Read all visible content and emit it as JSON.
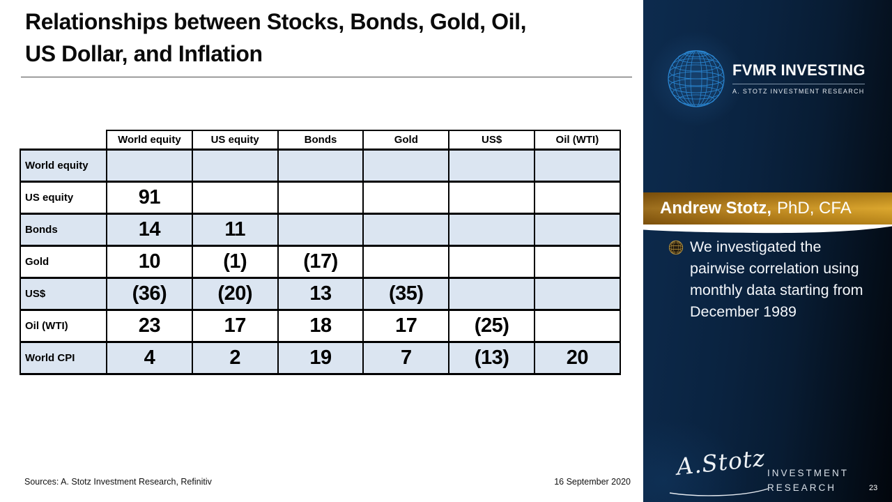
{
  "slide": {
    "title_lines": [
      "Relationships between Stocks, Bonds, Gold, Oil,",
      "US Dollar, and Inflation"
    ],
    "sources": "Sources: A. Stotz Investment Research, Refinitiv",
    "date": "16 September 2020",
    "page_number": "23"
  },
  "chart_data": {
    "type": "table",
    "columns": [
      "World equity",
      "US equity",
      "Bonds",
      "Gold",
      "US$",
      "Oil (WTI)"
    ],
    "rows": [
      {
        "label": "World equity",
        "display": [
          "",
          "",
          "",
          "",
          "",
          ""
        ],
        "values": [
          null,
          null,
          null,
          null,
          null,
          null
        ]
      },
      {
        "label": "US equity",
        "display": [
          "91",
          "",
          "",
          "",
          "",
          ""
        ],
        "values": [
          91,
          null,
          null,
          null,
          null,
          null
        ]
      },
      {
        "label": "Bonds",
        "display": [
          "14",
          "11",
          "",
          "",
          "",
          ""
        ],
        "values": [
          14,
          11,
          null,
          null,
          null,
          null
        ]
      },
      {
        "label": "Gold",
        "display": [
          "10",
          "(1)",
          "(17)",
          "",
          "",
          ""
        ],
        "values": [
          10,
          -1,
          -17,
          null,
          null,
          null
        ]
      },
      {
        "label": "US$",
        "display": [
          "(36)",
          "(20)",
          "13",
          "(35)",
          "",
          ""
        ],
        "values": [
          -36,
          -20,
          13,
          -35,
          null,
          null
        ]
      },
      {
        "label": "Oil (WTI)",
        "display": [
          "23",
          "17",
          "18",
          "17",
          "(25)",
          ""
        ],
        "values": [
          23,
          17,
          18,
          17,
          -25,
          null
        ]
      },
      {
        "label": "World CPI",
        "display": [
          "4",
          "2",
          "19",
          "7",
          "(13)",
          "20"
        ],
        "values": [
          4,
          2,
          19,
          7,
          -13,
          20
        ]
      }
    ]
  },
  "sidebar": {
    "brand_bold": "FVMR",
    "brand_rest": "INVESTING",
    "sub_brand": "A. STOTZ INVESTMENT RESEARCH",
    "author_name": "Andrew Stotz,",
    "author_credentials": "PhD, CFA",
    "bullet_lines": [
      "We investigated the",
      "pairwise correlation using",
      "monthly data starting from",
      "December 1989"
    ],
    "signature": "A.Stotz",
    "logo_lines": [
      "INVESTMENT",
      "RESEARCH"
    ]
  },
  "colors": {
    "banner_gold_dark": "#8a5a0e",
    "banner_gold_light": "#d59d20",
    "sidebar_navy": "#0a2240",
    "row_highlight_blue": "#dbe5f1",
    "globe_blue": "#2b87d3"
  }
}
